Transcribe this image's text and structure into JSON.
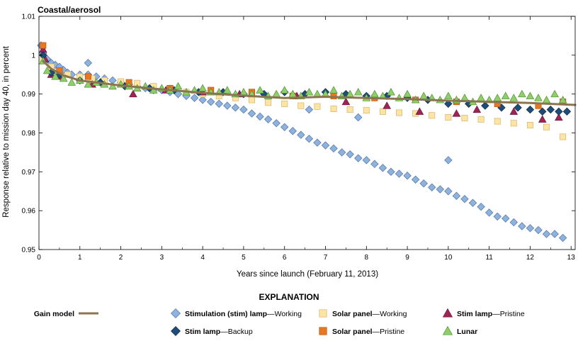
{
  "chart_data": {
    "type": "scatter",
    "title": "Coastal/aerosol",
    "xlabel": "Years since launch (February 11, 2013)",
    "ylabel": "Response relative to mission day 40, in percent",
    "xlim": [
      0,
      13.1
    ],
    "ylim": [
      0.95,
      1.01
    ],
    "x_ticks": [
      0,
      1,
      2,
      3,
      4,
      5,
      6,
      7,
      8,
      9,
      10,
      11,
      12,
      13
    ],
    "y_ticks": [
      0.95,
      0.96,
      0.97,
      0.98,
      0.99,
      1,
      1.01
    ],
    "y_tick_labels": [
      "0.95",
      "0.96",
      "0.97",
      "0.98",
      "0.99",
      "1",
      "1.01"
    ],
    "grid": false,
    "legend_placement": "bottom",
    "legend_title": "EXPLANATION",
    "series": [
      {
        "key": "gain",
        "kind": "line",
        "color": "#8b7550",
        "legend_bold": "Gain model",
        "legend_rest": "",
        "x": [
          0.1,
          0.3,
          0.6,
          1,
          2,
          3,
          4,
          5,
          6,
          7,
          8,
          9,
          10,
          11,
          12,
          13.1
        ],
        "y": [
          0.9985,
          0.9965,
          0.9948,
          0.9935,
          0.9922,
          0.9912,
          0.9903,
          0.9896,
          0.989,
          0.9893,
          0.989,
          0.9887,
          0.9883,
          0.988,
          0.9877,
          0.9872
        ]
      },
      {
        "key": "stim_working",
        "kind": "points",
        "marker": "diamond",
        "color": "#8fb2dc",
        "stroke": "#4d74aa",
        "legend_bold": "Stimulation (stim) lamp",
        "legend_rest": "—Working",
        "x": [
          0.05,
          0.1,
          0.15,
          0.2,
          0.3,
          0.4,
          0.5,
          0.6,
          0.7,
          0.8,
          1,
          1.2,
          1.4,
          1.6,
          1.8,
          2,
          2.2,
          2.4,
          2.6,
          2.8,
          3,
          3.2,
          3.4,
          3.6,
          3.8,
          4,
          4.2,
          4.4,
          4.6,
          4.8,
          5,
          5.2,
          5.4,
          5.6,
          5.8,
          6,
          6.2,
          6.4,
          6.6,
          6.8,
          7,
          7.2,
          7.4,
          7.6,
          7.8,
          8,
          8.2,
          8.4,
          8.6,
          8.8,
          9,
          9.2,
          9.4,
          9.6,
          9.8,
          10,
          10.2,
          10.4,
          10.6,
          10.8,
          11,
          11.2,
          11.4,
          11.6,
          11.8,
          12,
          12.2,
          12.4,
          12.6,
          12.8,
          10,
          7.8,
          1.2,
          6.6
        ],
        "y": [
          1.0025,
          1.0005,
          0.9995,
          0.999,
          0.998,
          0.9975,
          0.997,
          0.9962,
          0.9955,
          0.995,
          0.995,
          0.995,
          0.9945,
          0.994,
          0.9935,
          0.993,
          0.9925,
          0.992,
          0.9915,
          0.991,
          0.991,
          0.9905,
          0.99,
          0.9895,
          0.989,
          0.9885,
          0.988,
          0.9875,
          0.987,
          0.9865,
          0.986,
          0.985,
          0.9842,
          0.9835,
          0.9825,
          0.9815,
          0.9805,
          0.9795,
          0.9785,
          0.9775,
          0.9768,
          0.976,
          0.975,
          0.9745,
          0.9735,
          0.973,
          0.972,
          0.971,
          0.97,
          0.9695,
          0.969,
          0.968,
          0.967,
          0.966,
          0.9655,
          0.965,
          0.9638,
          0.963,
          0.962,
          0.961,
          0.9595,
          0.9585,
          0.958,
          0.957,
          0.956,
          0.9555,
          0.955,
          0.954,
          0.954,
          0.953,
          0.973,
          0.984,
          0.998,
          0.986
        ]
      },
      {
        "key": "solar_working",
        "kind": "points",
        "marker": "square",
        "color": "#fce4a4",
        "stroke": "#d6b56b",
        "legend_bold": "Solar panel",
        "legend_rest": "—Working",
        "x": [
          0.1,
          0.3,
          0.5,
          0.7,
          1,
          1.3,
          1.6,
          2,
          2.4,
          2.8,
          3.2,
          3.6,
          4,
          4.4,
          4.8,
          5.2,
          5.6,
          6,
          6.4,
          6.8,
          7.2,
          7.6,
          8,
          8.4,
          8.8,
          9.2,
          9.6,
          10,
          10.4,
          10.8,
          11.2,
          11.6,
          12,
          12.4,
          12.8
        ],
        "y": [
          0.999,
          0.997,
          0.9955,
          0.995,
          0.9945,
          0.994,
          0.9935,
          0.9932,
          0.9928,
          0.992,
          0.9915,
          0.9905,
          0.99,
          0.9895,
          0.989,
          0.9885,
          0.9878,
          0.9875,
          0.987,
          0.9868,
          0.9862,
          0.986,
          0.9858,
          0.9855,
          0.9852,
          0.985,
          0.9845,
          0.984,
          0.9838,
          0.9835,
          0.983,
          0.9825,
          0.982,
          0.9815,
          0.979
        ]
      },
      {
        "key": "stim_pristine",
        "kind": "points",
        "marker": "triangle",
        "color": "#9e2457",
        "stroke": "#6d1538",
        "legend_bold": "Stim lamp",
        "legend_rest": "—Pristine",
        "x": [
          0.1,
          0.15,
          0.3,
          0.5,
          1.3,
          2.3,
          3.1,
          4,
          4.9,
          6.3,
          7.5,
          8.5,
          9.3,
          10.2,
          10.7,
          11.6,
          12.3,
          12.7
        ],
        "y": [
          1.0015,
          0.999,
          0.995,
          0.9945,
          0.9925,
          0.99,
          0.991,
          0.9905,
          0.99,
          0.9895,
          0.988,
          0.987,
          0.9855,
          0.985,
          0.986,
          0.9855,
          0.9835,
          0.984
        ]
      },
      {
        "key": "stim_backup",
        "kind": "points",
        "marker": "diamond",
        "color": "#1f4d7a",
        "stroke": "#0e2a47",
        "legend_bold": "Stim lamp",
        "legend_rest": "—Backup",
        "x": [
          0.1,
          0.3,
          0.5,
          1,
          1.5,
          2.1,
          2.7,
          3.3,
          3.9,
          4.5,
          5,
          5.5,
          6,
          6.5,
          7,
          7.5,
          8,
          8.5,
          9,
          9.5,
          10,
          10.5,
          10.9,
          11.3,
          11.7,
          12,
          12.3,
          12.5,
          12.7,
          12.9
        ],
        "y": [
          1,
          0.9955,
          0.995,
          0.9935,
          0.993,
          0.992,
          0.9915,
          0.991,
          0.9905,
          0.9905,
          0.99,
          0.99,
          0.9905,
          0.99,
          0.9905,
          0.99,
          0.9895,
          0.9895,
          0.989,
          0.9885,
          0.9875,
          0.9875,
          0.987,
          0.9865,
          0.9865,
          0.986,
          0.9855,
          0.986,
          0.9855,
          0.9855
        ]
      },
      {
        "key": "solar_pristine",
        "kind": "points",
        "marker": "square",
        "color": "#e87722",
        "stroke": "#b3540f",
        "legend_bold": "Solar panel",
        "legend_rest": "—Pristine",
        "x": [
          0.1,
          0.5,
          1.2,
          2.2,
          3.2,
          4.2,
          5.2,
          6.2,
          7.2,
          8.2,
          9.2,
          10.2,
          11.2,
          12.2,
          12.8
        ],
        "y": [
          1.0025,
          0.996,
          0.9945,
          0.993,
          0.9915,
          0.991,
          0.9905,
          0.9895,
          0.9895,
          0.989,
          0.9885,
          0.988,
          0.9875,
          0.987,
          0.988
        ]
      },
      {
        "key": "lunar",
        "kind": "points",
        "marker": "triangle",
        "color": "#8fcf6a",
        "stroke": "#4f9132",
        "legend_bold": "Lunar",
        "legend_rest": "",
        "x": [
          0.1,
          0.2,
          0.4,
          0.6,
          0.8,
          1,
          1.2,
          1.4,
          1.6,
          1.8,
          2,
          2.2,
          2.4,
          2.6,
          2.8,
          3,
          3.2,
          3.4,
          3.6,
          3.8,
          4,
          4.2,
          4.4,
          4.6,
          4.8,
          5,
          5.2,
          5.4,
          5.6,
          5.8,
          6,
          6.2,
          6.4,
          6.6,
          6.8,
          7,
          7.2,
          7.4,
          7.6,
          7.8,
          8,
          8.2,
          8.4,
          8.6,
          8.8,
          9,
          9.2,
          9.4,
          9.6,
          9.8,
          10,
          10.2,
          10.4,
          10.6,
          10.8,
          11,
          11.2,
          11.4,
          11.6,
          11.8,
          12,
          12.2,
          12.4,
          12.6,
          12.8
        ],
        "y": [
          0.9985,
          0.996,
          0.9945,
          0.994,
          0.993,
          0.9935,
          0.9925,
          0.993,
          0.9925,
          0.992,
          0.9925,
          0.992,
          0.9915,
          0.992,
          0.991,
          0.9915,
          0.991,
          0.992,
          0.9905,
          0.991,
          0.9915,
          0.9905,
          0.9905,
          0.991,
          0.99,
          0.9905,
          0.99,
          0.991,
          0.9895,
          0.99,
          0.991,
          0.99,
          0.9895,
          0.9905,
          0.99,
          0.99,
          0.991,
          0.9895,
          0.99,
          0.9905,
          0.989,
          0.99,
          0.9895,
          0.9905,
          0.989,
          0.99,
          0.9885,
          0.9895,
          0.989,
          0.9885,
          0.9895,
          0.9885,
          0.989,
          0.988,
          0.989,
          0.9885,
          0.989,
          0.9895,
          0.989,
          0.99,
          0.9895,
          0.989,
          0.9885,
          0.99,
          0.9885
        ]
      }
    ]
  }
}
